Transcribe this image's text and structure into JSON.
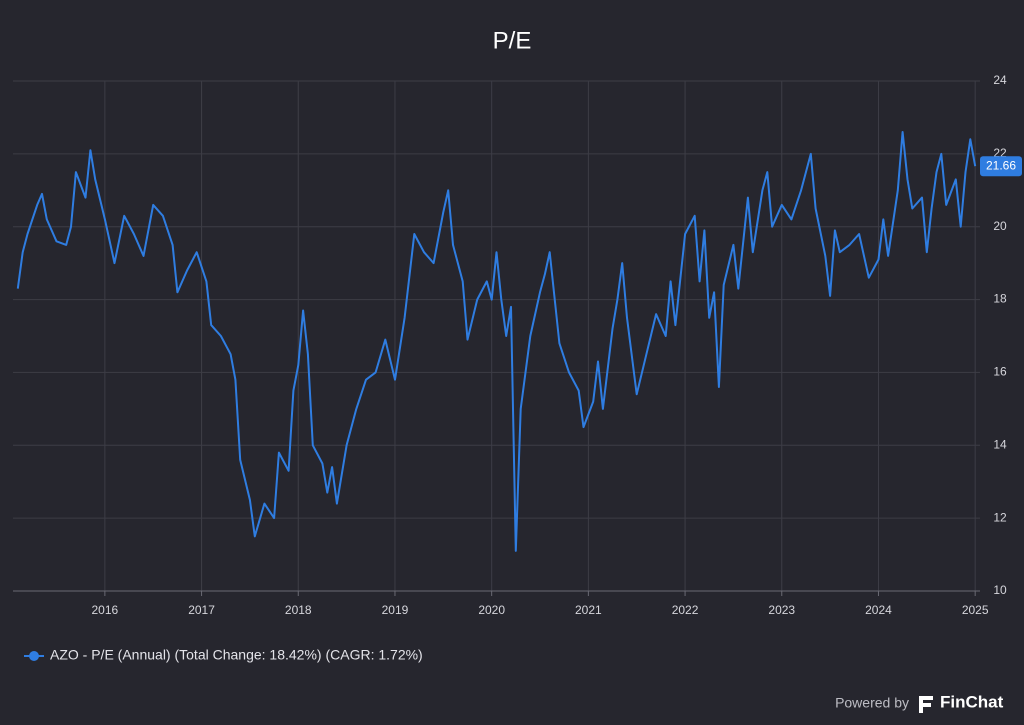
{
  "chart_data": {
    "type": "line",
    "title": "P/E",
    "x": [
      2015.1,
      2015.15,
      2015.2,
      2015.3,
      2015.35,
      2015.4,
      2015.5,
      2015.6,
      2015.65,
      2015.7,
      2015.8,
      2015.85,
      2015.9,
      2016.0,
      2016.1,
      2016.2,
      2016.3,
      2016.4,
      2016.5,
      2016.6,
      2016.7,
      2016.75,
      2016.85,
      2016.95,
      2017.05,
      2017.1,
      2017.2,
      2017.3,
      2017.35,
      2017.4,
      2017.5,
      2017.55,
      2017.65,
      2017.75,
      2017.8,
      2017.9,
      2017.95,
      2018.0,
      2018.05,
      2018.1,
      2018.15,
      2018.25,
      2018.3,
      2018.35,
      2018.4,
      2018.5,
      2018.6,
      2018.7,
      2018.8,
      2018.9,
      2019.0,
      2019.1,
      2019.2,
      2019.3,
      2019.4,
      2019.5,
      2019.55,
      2019.6,
      2019.7,
      2019.75,
      2019.85,
      2019.95,
      2020.0,
      2020.05,
      2020.1,
      2020.15,
      2020.2,
      2020.25,
      2020.3,
      2020.4,
      2020.5,
      2020.55,
      2020.6,
      2020.7,
      2020.8,
      2020.9,
      2020.95,
      2021.05,
      2021.1,
      2021.15,
      2021.25,
      2021.3,
      2021.35,
      2021.4,
      2021.5,
      2021.6,
      2021.7,
      2021.8,
      2021.85,
      2021.9,
      2022.0,
      2022.1,
      2022.15,
      2022.2,
      2022.25,
      2022.3,
      2022.35,
      2022.4,
      2022.5,
      2022.55,
      2022.65,
      2022.7,
      2022.8,
      2022.85,
      2022.9,
      2023.0,
      2023.1,
      2023.2,
      2023.3,
      2023.35,
      2023.45,
      2023.5,
      2023.55,
      2023.6,
      2023.7,
      2023.8,
      2023.9,
      2024.0,
      2024.05,
      2024.1,
      2024.2,
      2024.25,
      2024.3,
      2024.35,
      2024.45,
      2024.5,
      2024.55,
      2024.6,
      2024.65,
      2024.7,
      2024.8,
      2024.85,
      2024.9,
      2024.95,
      2025.0
    ],
    "series": [
      {
        "name": "AZO - P/E (Annual) (Total Change: 18.42%) (CAGR: 1.72%)",
        "color": "#2f7de1",
        "values": [
          18.3,
          19.3,
          19.8,
          20.6,
          20.9,
          20.2,
          19.6,
          19.5,
          20.0,
          21.5,
          20.8,
          22.1,
          21.3,
          20.2,
          19.0,
          20.3,
          19.8,
          19.2,
          20.6,
          20.3,
          19.5,
          18.2,
          18.8,
          19.3,
          18.5,
          17.3,
          17.0,
          16.5,
          15.8,
          13.6,
          12.5,
          11.5,
          12.4,
          12.0,
          13.8,
          13.3,
          15.5,
          16.2,
          17.7,
          16.5,
          14.0,
          13.5,
          12.7,
          13.4,
          12.4,
          14.0,
          15.0,
          15.8,
          16.0,
          16.9,
          15.8,
          17.5,
          19.8,
          19.3,
          19.0,
          20.4,
          21.0,
          19.5,
          18.5,
          16.9,
          18.0,
          18.5,
          18.0,
          19.3,
          18.0,
          17.0,
          17.8,
          11.1,
          15.0,
          17.0,
          18.2,
          18.7,
          19.3,
          16.8,
          16.0,
          15.5,
          14.5,
          15.2,
          16.3,
          15.0,
          17.2,
          18.0,
          19.0,
          17.5,
          15.4,
          16.5,
          17.6,
          17.0,
          18.5,
          17.3,
          19.8,
          20.3,
          18.5,
          19.9,
          17.5,
          18.2,
          15.6,
          18.4,
          19.5,
          18.3,
          20.8,
          19.3,
          21.0,
          21.5,
          20.0,
          20.6,
          20.2,
          21.0,
          22.0,
          20.5,
          19.2,
          18.1,
          19.9,
          19.3,
          19.5,
          19.8,
          18.6,
          19.1,
          20.2,
          19.2,
          21.0,
          22.6,
          21.3,
          20.5,
          20.8,
          19.3,
          20.5,
          21.5,
          22.0,
          20.6,
          21.3,
          20.0,
          21.5,
          22.4,
          21.66
        ]
      }
    ],
    "xlim": [
      2015.05,
      2025.05
    ],
    "xticks": [
      2016,
      2017,
      2018,
      2019,
      2020,
      2021,
      2022,
      2023,
      2024,
      2025
    ],
    "ylim": [
      10,
      24
    ],
    "yticks": [
      10,
      12,
      14,
      16,
      18,
      20,
      22,
      24
    ],
    "grid": true
  },
  "footer": {
    "powered_by": "Powered by",
    "brand": "FinChat"
  }
}
